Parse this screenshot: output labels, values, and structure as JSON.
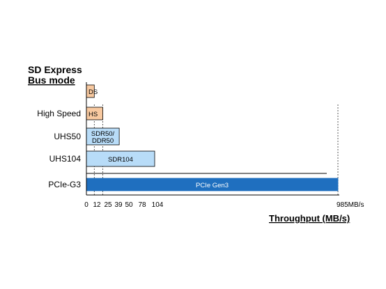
{
  "chart_data": {
    "type": "bar",
    "orientation": "horizontal",
    "title_lines": [
      "SD Express",
      "Bus mode"
    ],
    "xlabel": "Throughput (MB/s)",
    "ylabel": "",
    "categories": [
      "",
      "High Speed",
      "UHS50",
      "UHS104",
      "PCIe-G3"
    ],
    "bars": [
      {
        "category": "",
        "label_lines": [
          "DS"
        ],
        "value": 12,
        "color": "#f8c9a0"
      },
      {
        "category": "High Speed",
        "label_lines": [
          "HS"
        ],
        "value": 25,
        "color": "#f8c9a0"
      },
      {
        "category": "UHS50",
        "label_lines": [
          "SDR50/",
          "DDR50"
        ],
        "value": 50,
        "color": "#b8dcf8"
      },
      {
        "category": "UHS104",
        "label_lines": [
          "SDR104"
        ],
        "value": 104,
        "color": "#b8dcf8"
      },
      {
        "category": "PCIe-G3",
        "label_lines": [
          "PCIe Gen3"
        ],
        "value": 985,
        "color": "#1f6fbf"
      }
    ],
    "x_ticks": [
      {
        "value": 0,
        "label": "0"
      },
      {
        "value": 12,
        "label": "12"
      },
      {
        "value": 25,
        "label": "25"
      },
      {
        "value": 39,
        "label": "39"
      },
      {
        "value": 50,
        "label": "50"
      },
      {
        "value": 78,
        "label": "78"
      },
      {
        "value": 104,
        "label": "104"
      },
      {
        "value": 985,
        "label": "985MB/s"
      }
    ],
    "reference_lines": [
      12,
      25,
      985
    ],
    "grid": false,
    "scale": "broken"
  }
}
